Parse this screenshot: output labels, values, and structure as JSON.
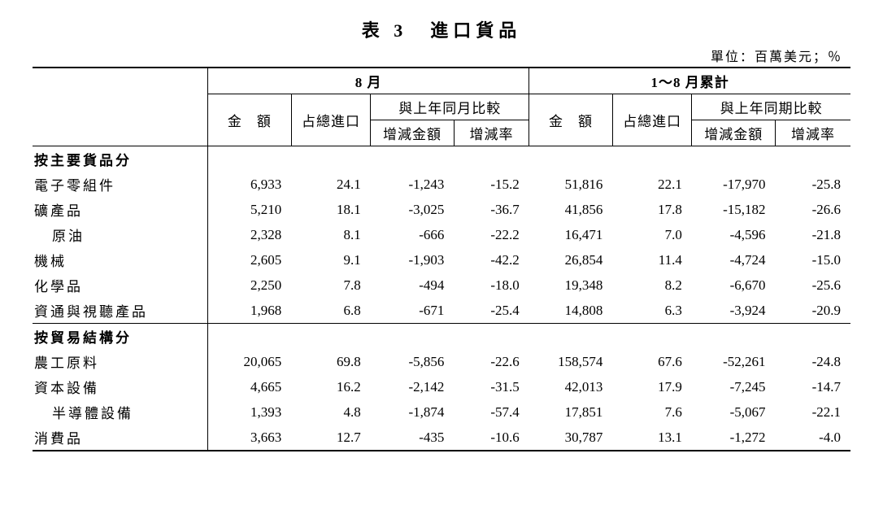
{
  "title": "表 3　進口貨品",
  "unit_label": "單位：百萬美元；％",
  "header": {
    "period1": "8 月",
    "period2": "1～8 月累計",
    "amount": "金　額",
    "share": "占總進口",
    "compare1": "與上年同月比較",
    "compare2": "與上年同期比較",
    "diff_amt": "增減金額",
    "diff_rate": "增減率"
  },
  "sections": [
    {
      "title": "按主要貨品分",
      "rows": [
        {
          "label": "電子零組件",
          "indent": false,
          "a": "6,933",
          "b": "24.1",
          "c": "-1,243",
          "d": "-15.2",
          "e": "51,816",
          "f": "22.1",
          "g": "-17,970",
          "h": "-25.8"
        },
        {
          "label": "礦產品",
          "indent": false,
          "a": "5,210",
          "b": "18.1",
          "c": "-3,025",
          "d": "-36.7",
          "e": "41,856",
          "f": "17.8",
          "g": "-15,182",
          "h": "-26.6"
        },
        {
          "label": "原油",
          "indent": true,
          "a": "2,328",
          "b": "8.1",
          "c": "-666",
          "d": "-22.2",
          "e": "16,471",
          "f": "7.0",
          "g": "-4,596",
          "h": "-21.8"
        },
        {
          "label": "機械",
          "indent": false,
          "a": "2,605",
          "b": "9.1",
          "c": "-1,903",
          "d": "-42.2",
          "e": "26,854",
          "f": "11.4",
          "g": "-4,724",
          "h": "-15.0"
        },
        {
          "label": "化學品",
          "indent": false,
          "a": "2,250",
          "b": "7.8",
          "c": "-494",
          "d": "-18.0",
          "e": "19,348",
          "f": "8.2",
          "g": "-6,670",
          "h": "-25.6"
        },
        {
          "label": "資通與視聽產品",
          "indent": false,
          "a": "1,968",
          "b": "6.8",
          "c": "-671",
          "d": "-25.4",
          "e": "14,808",
          "f": "6.3",
          "g": "-3,924",
          "h": "-20.9"
        }
      ]
    },
    {
      "title": "按貿易結構分",
      "rows": [
        {
          "label": "農工原料",
          "indent": false,
          "a": "20,065",
          "b": "69.8",
          "c": "-5,856",
          "d": "-22.6",
          "e": "158,574",
          "f": "67.6",
          "g": "-52,261",
          "h": "-24.8"
        },
        {
          "label": "資本設備",
          "indent": false,
          "a": "4,665",
          "b": "16.2",
          "c": "-2,142",
          "d": "-31.5",
          "e": "42,013",
          "f": "17.9",
          "g": "-7,245",
          "h": "-14.7"
        },
        {
          "label": "半導體設備",
          "indent": true,
          "a": "1,393",
          "b": "4.8",
          "c": "-1,874",
          "d": "-57.4",
          "e": "17,851",
          "f": "7.6",
          "g": "-5,067",
          "h": "-22.1"
        },
        {
          "label": "消費品",
          "indent": false,
          "a": "3,663",
          "b": "12.7",
          "c": "-435",
          "d": "-10.6",
          "e": "30,787",
          "f": "13.1",
          "g": "-1,272",
          "h": "-4.0"
        }
      ]
    }
  ]
}
